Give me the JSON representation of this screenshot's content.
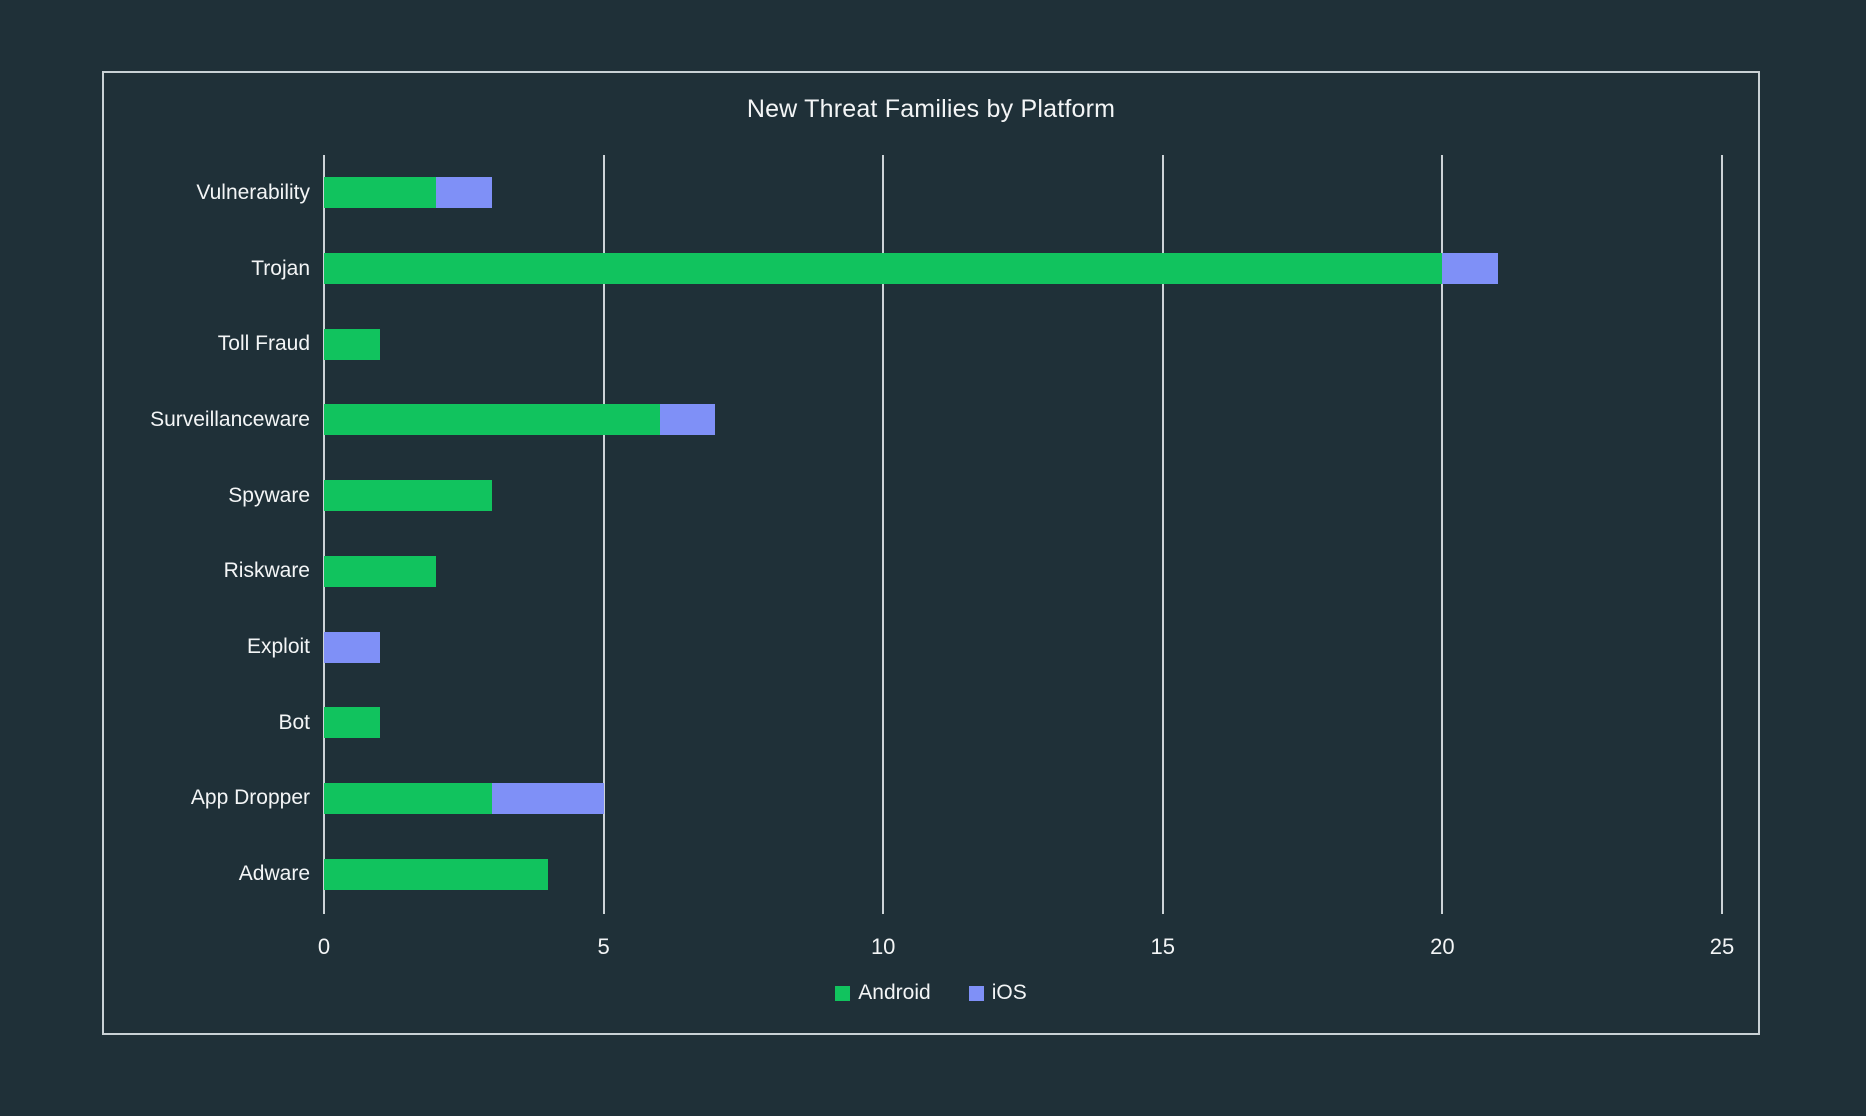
{
  "chart_data": {
    "type": "bar",
    "orientation": "horizontal",
    "stacked": true,
    "title": "New Threat Families by Platform",
    "categories_top_to_bottom": [
      "Vulnerability",
      "Trojan",
      "Toll Fraud",
      "Surveillanceware",
      "Spyware",
      "Riskware",
      "Exploit",
      "Bot",
      "App Dropper",
      "Adware"
    ],
    "series": [
      {
        "name": "Android",
        "color": "#11c35e",
        "values": [
          2,
          20,
          1,
          6,
          3,
          2,
          0,
          1,
          3,
          4
        ]
      },
      {
        "name": "iOS",
        "color": "#7f90f7",
        "values": [
          1,
          1,
          0,
          1,
          0,
          0,
          1,
          0,
          2,
          0
        ]
      }
    ],
    "x_ticks": [
      "0",
      "5",
      "10",
      "15",
      "20",
      "25"
    ],
    "xlim": [
      0,
      25
    ],
    "grid": "vertical-gridlines-on",
    "legend_position": "bottom-center"
  },
  "colors": {
    "background": "#1f3038",
    "frame_border": "#c9d1d5",
    "gridline": "#ccd3d7",
    "text": "#f3f5f6",
    "android": "#11c35e",
    "ios": "#7f90f7"
  }
}
